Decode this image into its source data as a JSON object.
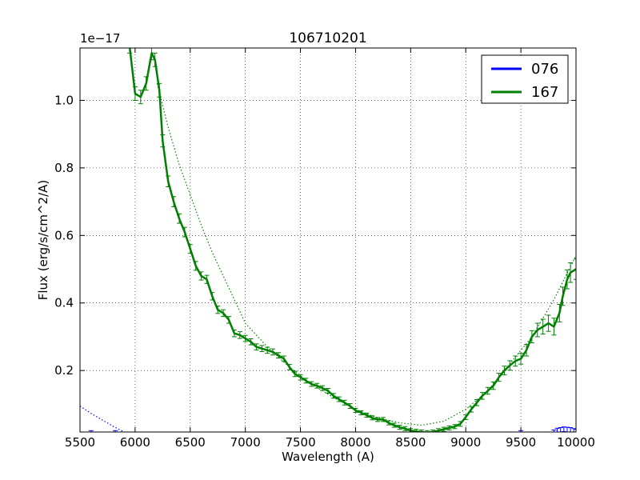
{
  "chart_data": {
    "type": "line",
    "title": "106710201",
    "xlabel": "Wavelength (A)",
    "ylabel": "Flux (erg/s/cm^2/A)",
    "y_offset_label": "1e−17",
    "xlim": [
      5500,
      10000
    ],
    "ylim": [
      0.018,
      1.155
    ],
    "xticks": [
      5500,
      6000,
      6500,
      7000,
      7500,
      8000,
      8500,
      9000,
      9500,
      10000
    ],
    "yticks": [
      0.2,
      0.4,
      0.6,
      0.8,
      1.0
    ],
    "xtick_labels": [
      "5500",
      "6000",
      "6500",
      "7000",
      "7500",
      "8000",
      "8500",
      "9000",
      "9500",
      "10000"
    ],
    "ytick_labels": [
      "0.2",
      "0.4",
      "0.6",
      "0.8",
      "1.0"
    ],
    "grid": true,
    "legend_position": "top-right",
    "series": [
      {
        "name": "076",
        "color": "#0000ff",
        "x": [
          5540,
          5600,
          5640,
          5780,
          5820,
          5840,
          9470,
          9500,
          9530,
          9800,
          9830,
          9860,
          9890,
          9920,
          9950,
          9980,
          10000
        ],
        "y": [
          0.012,
          0.016,
          0.012,
          0.012,
          0.016,
          0.012,
          0.012,
          0.016,
          0.012,
          0.018,
          0.022,
          0.024,
          0.026,
          0.025,
          0.024,
          0.022,
          0.02
        ],
        "err": [
          0.005,
          0.006,
          0.005,
          0.005,
          0.006,
          0.005,
          0.005,
          0.006,
          0.005,
          0.006,
          0.007,
          0.007,
          0.007,
          0.007,
          0.007,
          0.006,
          0.006
        ],
        "fit_x": [
          5500,
          5600,
          5700,
          5800,
          5900,
          5950
        ],
        "fit_y": [
          0.095,
          0.073,
          0.054,
          0.035,
          0.018,
          0.009
        ]
      },
      {
        "name": "167",
        "color": "#008000",
        "x": [
          5950,
          6000,
          6050,
          6100,
          6150,
          6180,
          6220,
          6250,
          6300,
          6350,
          6400,
          6450,
          6500,
          6550,
          6600,
          6650,
          6700,
          6750,
          6800,
          6850,
          6900,
          6950,
          7000,
          7050,
          7100,
          7150,
          7200,
          7250,
          7300,
          7350,
          7400,
          7450,
          7500,
          7550,
          7600,
          7650,
          7700,
          7750,
          7800,
          7850,
          7900,
          7950,
          8000,
          8050,
          8100,
          8150,
          8200,
          8250,
          8300,
          8350,
          8400,
          8450,
          8500,
          8550,
          8600,
          8650,
          8700,
          8750,
          8800,
          8850,
          8900,
          8950,
          9000,
          9050,
          9100,
          9150,
          9200,
          9250,
          9300,
          9350,
          9400,
          9450,
          9500,
          9550,
          9600,
          9650,
          9700,
          9750,
          9800,
          9850,
          9880,
          9920,
          9950,
          10000
        ],
        "y": [
          1.16,
          1.02,
          1.01,
          1.05,
          1.14,
          1.12,
          1.03,
          0.88,
          0.76,
          0.7,
          0.65,
          0.61,
          0.56,
          0.51,
          0.48,
          0.47,
          0.42,
          0.38,
          0.37,
          0.35,
          0.31,
          0.305,
          0.295,
          0.285,
          0.27,
          0.265,
          0.26,
          0.255,
          0.245,
          0.235,
          0.21,
          0.19,
          0.18,
          0.17,
          0.16,
          0.155,
          0.148,
          0.14,
          0.125,
          0.115,
          0.105,
          0.095,
          0.082,
          0.075,
          0.068,
          0.06,
          0.055,
          0.055,
          0.045,
          0.038,
          0.032,
          0.028,
          0.022,
          0.02,
          0.018,
          0.016,
          0.018,
          0.022,
          0.026,
          0.03,
          0.034,
          0.042,
          0.062,
          0.085,
          0.105,
          0.125,
          0.14,
          0.155,
          0.18,
          0.2,
          0.215,
          0.228,
          0.235,
          0.26,
          0.3,
          0.32,
          0.33,
          0.34,
          0.33,
          0.37,
          0.42,
          0.47,
          0.49,
          0.5
        ],
        "err": [
          0.02,
          0.02,
          0.02,
          0.02,
          0.02,
          0.02,
          0.02,
          0.018,
          0.016,
          0.015,
          0.014,
          0.014,
          0.013,
          0.013,
          0.012,
          0.012,
          0.011,
          0.011,
          0.01,
          0.01,
          0.01,
          0.01,
          0.009,
          0.009,
          0.009,
          0.009,
          0.009,
          0.009,
          0.008,
          0.008,
          0.008,
          0.008,
          0.008,
          0.007,
          0.007,
          0.007,
          0.007,
          0.007,
          0.007,
          0.007,
          0.007,
          0.007,
          0.006,
          0.006,
          0.006,
          0.006,
          0.006,
          0.006,
          0.006,
          0.006,
          0.006,
          0.006,
          0.006,
          0.006,
          0.006,
          0.006,
          0.006,
          0.006,
          0.006,
          0.006,
          0.006,
          0.007,
          0.007,
          0.008,
          0.009,
          0.01,
          0.01,
          0.011,
          0.012,
          0.013,
          0.014,
          0.015,
          0.016,
          0.017,
          0.018,
          0.02,
          0.022,
          0.024,
          0.025,
          0.026,
          0.027,
          0.028,
          0.029,
          0.03
        ],
        "fit_x": [
          6200,
          6300,
          6400,
          6500,
          6600,
          6700,
          6800,
          6900,
          7000,
          7200,
          7400,
          7600,
          7800,
          8000,
          8200,
          8400,
          8600,
          8800,
          9000,
          9200,
          9400,
          9600,
          9800,
          10000
        ],
        "fit_y": [
          1.05,
          0.92,
          0.81,
          0.72,
          0.63,
          0.55,
          0.48,
          0.41,
          0.34,
          0.27,
          0.21,
          0.16,
          0.12,
          0.085,
          0.06,
          0.045,
          0.038,
          0.05,
          0.085,
          0.14,
          0.22,
          0.3,
          0.41,
          0.54
        ]
      }
    ]
  }
}
